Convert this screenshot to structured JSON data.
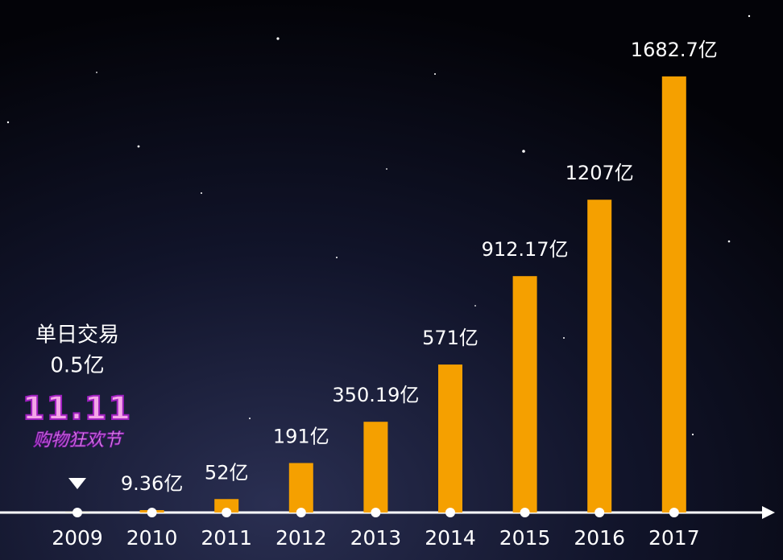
{
  "chart_data": {
    "type": "bar",
    "annotation": "单日交易",
    "logo": {
      "top": "11.11",
      "bottom": "购物狂欢节"
    },
    "categories": [
      "2009",
      "2010",
      "2011",
      "2012",
      "2013",
      "2014",
      "2015",
      "2016",
      "2017"
    ],
    "values": [
      0.5,
      9.36,
      52,
      191,
      350.19,
      571,
      912.17,
      1207,
      1682.7
    ],
    "value_labels": [
      "0.5亿",
      "9.36亿",
      "52亿",
      "191亿",
      "350.19亿",
      "571亿",
      "912.17亿",
      "1207亿",
      "1682.7亿"
    ],
    "color": "#f5a000"
  }
}
